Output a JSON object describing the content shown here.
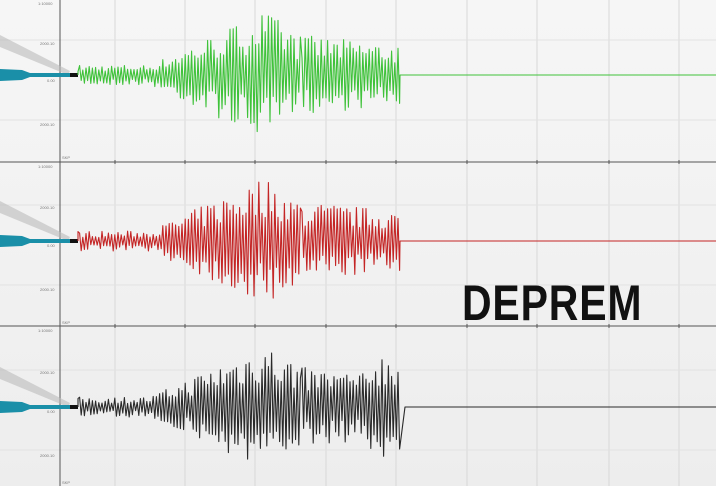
{
  "title": "DEPREM",
  "panels": [
    {
      "name": "top",
      "trace_color": "#3fc23a",
      "scale_label": "1:10000",
      "upper_label": "2000.10",
      "zero_label": "0.00",
      "lower_label": "2000.10",
      "axis_label": "SKP"
    },
    {
      "name": "middle",
      "trace_color": "#c42525",
      "scale_label": "1:10000",
      "upper_label": "2000.10",
      "zero_label": "0.00",
      "lower_label": "2000.10",
      "axis_label": "SKP"
    },
    {
      "name": "bottom",
      "trace_color": "#2a2a2a",
      "scale_label": "1:10000",
      "upper_label": "2000.10",
      "zero_label": "0.00",
      "lower_label": "2000.10",
      "axis_label": "SKP"
    }
  ],
  "colors": {
    "stylus": "#1a8fa8",
    "grid": "#d8d8d8",
    "axis": "#555555"
  }
}
